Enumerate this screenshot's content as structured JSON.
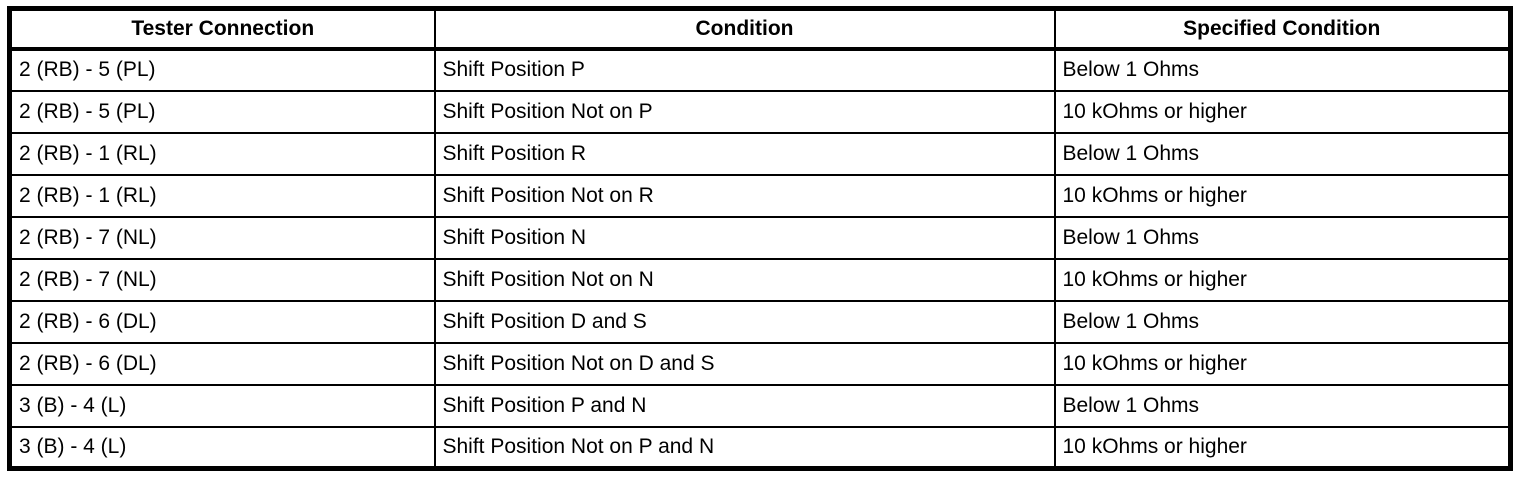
{
  "table": {
    "headers": [
      "Tester Connection",
      "Condition",
      "Specified Condition"
    ],
    "rows": [
      [
        "2 (RB) - 5 (PL)",
        "Shift Position P",
        "Below 1 Ohms"
      ],
      [
        "2 (RB) - 5 (PL)",
        "Shift Position Not on P",
        "10 kOhms or higher"
      ],
      [
        "2 (RB) - 1 (RL)",
        "Shift Position R",
        "Below 1 Ohms"
      ],
      [
        "2 (RB) - 1 (RL)",
        "Shift Position Not on R",
        "10 kOhms or higher"
      ],
      [
        "2 (RB) - 7 (NL)",
        "Shift Position N",
        "Below 1 Ohms"
      ],
      [
        "2 (RB) - 7 (NL)",
        "Shift Position Not on N",
        "10 kOhms or higher"
      ],
      [
        "2 (RB) - 6 (DL)",
        "Shift Position D and S",
        "Below 1 Ohms"
      ],
      [
        "2 (RB) - 6 (DL)",
        "Shift Position Not on D and S",
        "10 kOhms or higher"
      ],
      [
        "3 (B) - 4 (L)",
        "Shift Position P and N",
        "Below 1 Ohms"
      ],
      [
        "3 (B) - 4 (L)",
        "Shift Position Not on P and N",
        "10 kOhms or higher"
      ]
    ],
    "colors": {
      "border": "#000000",
      "text": "#000000",
      "background": "#ffffff"
    }
  }
}
